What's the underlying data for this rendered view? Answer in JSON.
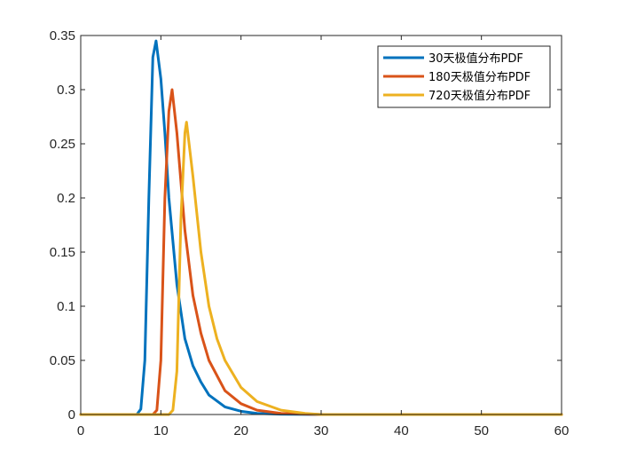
{
  "chart_data": {
    "type": "line",
    "title": "",
    "xlabel": "",
    "ylabel": "",
    "xlim": [
      0,
      60
    ],
    "ylim": [
      0,
      0.35
    ],
    "x_ticks": [
      "0",
      "10",
      "20",
      "30",
      "40",
      "50",
      "60"
    ],
    "y_ticks": [
      "0",
      "0.05",
      "0.1",
      "0.15",
      "0.2",
      "0.25",
      "0.3",
      "0.35"
    ],
    "grid": false,
    "legend_position": "top-right",
    "series": [
      {
        "name": "30天极值分布PDF",
        "color": "#0072BD",
        "mode": 9.4,
        "peak": 0.345,
        "x": [
          0,
          5,
          7,
          7.5,
          8,
          8.5,
          9,
          9.4,
          10,
          10.5,
          11,
          12,
          13,
          14,
          15,
          16,
          18,
          20,
          22,
          25,
          30,
          40,
          50,
          60
        ],
        "y": [
          0,
          0,
          0,
          0.005,
          0.05,
          0.2,
          0.33,
          0.345,
          0.31,
          0.26,
          0.2,
          0.12,
          0.07,
          0.045,
          0.03,
          0.018,
          0.007,
          0.003,
          0.001,
          0.0003,
          0,
          0,
          0,
          0
        ]
      },
      {
        "name": "180天极值分布PDF",
        "color": "#D95319",
        "mode": 11.4,
        "peak": 0.3,
        "x": [
          0,
          5,
          9,
          9.5,
          10,
          10.5,
          11,
          11.4,
          12,
          13,
          14,
          15,
          16,
          18,
          20,
          22,
          25,
          30,
          40,
          50,
          60
        ],
        "y": [
          0,
          0,
          0,
          0.004,
          0.05,
          0.2,
          0.28,
          0.3,
          0.26,
          0.17,
          0.11,
          0.075,
          0.05,
          0.022,
          0.01,
          0.004,
          0.001,
          0,
          0,
          0,
          0
        ]
      },
      {
        "name": "720天极值分布PDF",
        "color": "#EDB120",
        "mode": 13.2,
        "peak": 0.27,
        "x": [
          0,
          5,
          11,
          11.5,
          12,
          12.5,
          13,
          13.2,
          14,
          15,
          16,
          17,
          18,
          20,
          22,
          25,
          28,
          30,
          40,
          50,
          60
        ],
        "y": [
          0,
          0,
          0,
          0.004,
          0.04,
          0.18,
          0.26,
          0.27,
          0.22,
          0.15,
          0.1,
          0.07,
          0.05,
          0.025,
          0.012,
          0.004,
          0.001,
          0,
          0,
          0,
          0
        ]
      }
    ]
  }
}
